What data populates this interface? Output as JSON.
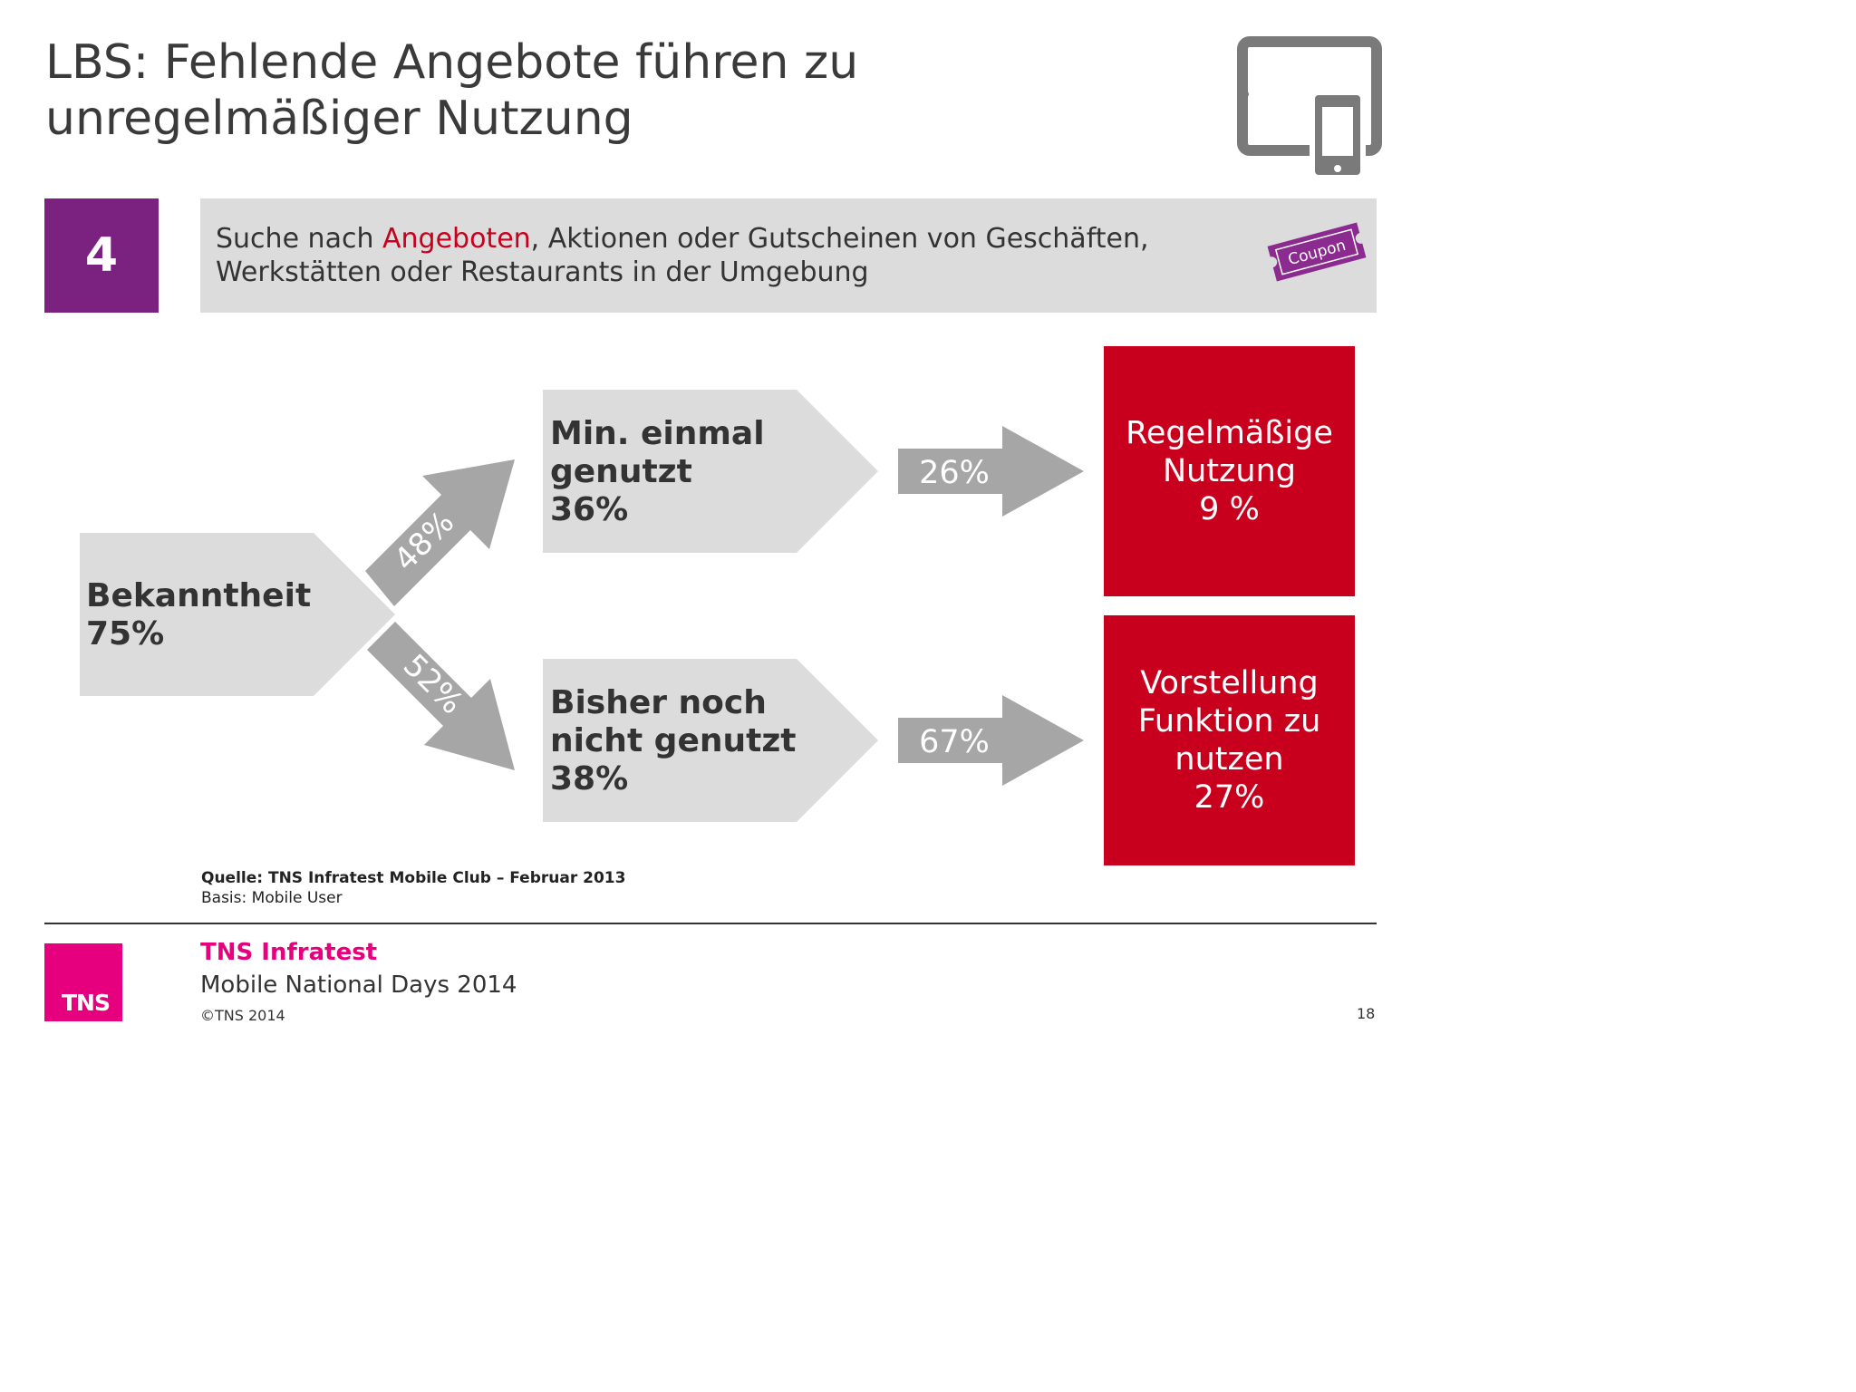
{
  "title": {
    "line1": "LBS: Fehlende Angebote führen zu",
    "line2": "unregelmäßiger Nutzung"
  },
  "header": {
    "number": "4",
    "description_part1": "Suche nach ",
    "description_highlight": "Angeboten",
    "description_part2": ", Aktionen oder Gutscheinen von Geschäften,",
    "description_line2": "Werkstätten oder Restaurants in der Umgebung",
    "coupon_label": "Coupon",
    "device_icon": "tablet-smartphone-icon"
  },
  "flow": {
    "awareness": {
      "label": "Bekanntheit",
      "value": "75%"
    },
    "branch_up": {
      "value": "48%"
    },
    "branch_down": {
      "value": "52%"
    },
    "used": {
      "line1": "Min. einmal",
      "line2": "genutzt",
      "value": "36%"
    },
    "not_used": {
      "line1": "Bisher noch",
      "line2": "nicht genutzt",
      "value": "38%"
    },
    "arrow_used": {
      "value": "26%"
    },
    "arrow_not_used": {
      "value": "67%"
    },
    "regular": {
      "line1": "Regelmäßige",
      "line2": "Nutzung",
      "value": "9 %"
    },
    "imagine": {
      "line1": "Vorstellung",
      "line2": "Funktion zu",
      "line3": "nutzen",
      "value": "27%"
    }
  },
  "source": {
    "quelle": "Quelle: TNS Infratest Mobile Club – Februar 2013",
    "basis": "Basis:  Mobile User"
  },
  "footer": {
    "logo_text": "TNS",
    "company": "TNS Infratest",
    "event": "Mobile National Days 2014",
    "copyright": "©TNS 2014",
    "page_number": "18"
  },
  "colors": {
    "purple": "#7b2180",
    "red": "#c8001e",
    "magenta": "#e6007e",
    "light_gray": "#dcdcdc",
    "arrow_gray": "#a6a6a6"
  }
}
